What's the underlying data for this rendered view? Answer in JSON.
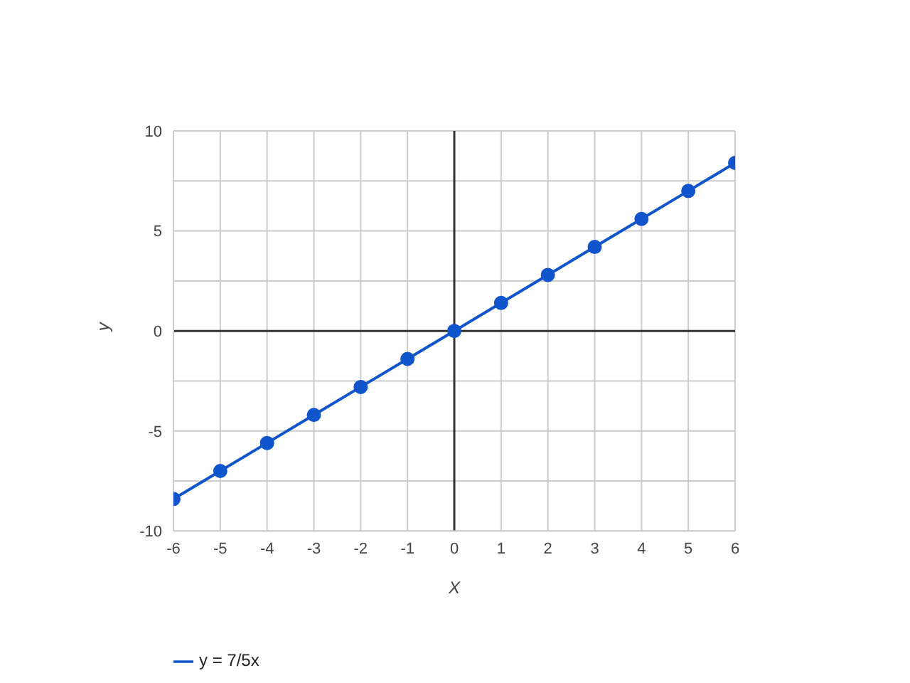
{
  "chart_data": {
    "type": "line",
    "xlabel": "X",
    "ylabel": "y",
    "x": [
      -6,
      -5,
      -4,
      -3,
      -2,
      -1,
      0,
      1,
      2,
      3,
      4,
      5,
      6
    ],
    "series": [
      {
        "name": "y = 7/5x",
        "color": "#1155cc",
        "values": [
          -8.4,
          -7,
          -5.6,
          -4.2,
          -2.8,
          -1.4,
          0,
          1.4,
          2.8,
          4.2,
          5.6,
          7,
          8.4
        ]
      }
    ],
    "xlim": [
      -6,
      6
    ],
    "xticks": [
      -6,
      -5,
      -4,
      -3,
      -2,
      -1,
      0,
      1,
      2,
      3,
      4,
      5,
      6
    ],
    "ylim": [
      -10,
      10
    ],
    "yticks": [
      -10,
      {
        "value": -7.5,
        "label": null
      },
      -5,
      {
        "value": -2.5,
        "label": null
      },
      0,
      {
        "value": 2.5,
        "label": null
      },
      5,
      {
        "value": 7.5,
        "label": null
      },
      10
    ],
    "grid": true,
    "legend": "bottom left",
    "marker": "circle",
    "line_style": "solid"
  }
}
